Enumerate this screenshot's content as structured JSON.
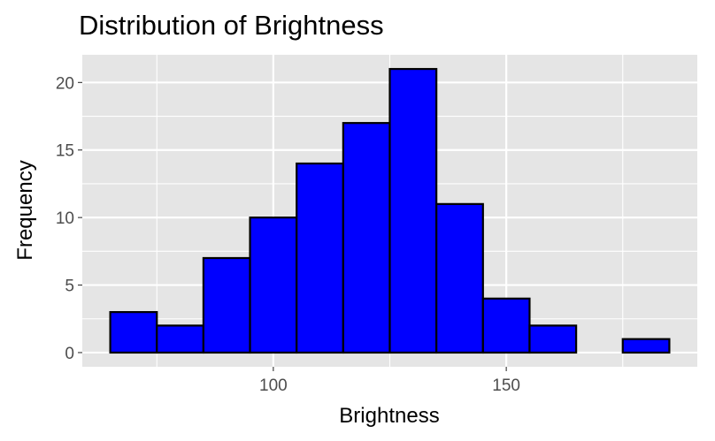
{
  "chart_data": {
    "type": "bar",
    "title": "Distribution of Brightness",
    "xlabel": "Brightness",
    "ylabel": "Frequency",
    "bin_width": 10,
    "bins": [
      {
        "start": 65,
        "end": 75,
        "count": 3
      },
      {
        "start": 75,
        "end": 85,
        "count": 2
      },
      {
        "start": 85,
        "end": 95,
        "count": 7
      },
      {
        "start": 95,
        "end": 105,
        "count": 10
      },
      {
        "start": 105,
        "end": 115,
        "count": 14
      },
      {
        "start": 115,
        "end": 125,
        "count": 17
      },
      {
        "start": 125,
        "end": 135,
        "count": 21
      },
      {
        "start": 135,
        "end": 145,
        "count": 11
      },
      {
        "start": 145,
        "end": 155,
        "count": 4
      },
      {
        "start": 155,
        "end": 165,
        "count": 2
      },
      {
        "start": 165,
        "end": 175,
        "count": 0
      },
      {
        "start": 175,
        "end": 185,
        "count": 1
      }
    ],
    "xlim": [
      59,
      191
    ],
    "ylim": [
      -1.05,
      22.05
    ],
    "x_ticks": [
      100,
      150
    ],
    "x_tick_labels": [
      "100",
      "150"
    ],
    "x_minor_ticks": [
      75,
      125,
      175
    ],
    "y_ticks": [
      0,
      5,
      10,
      15,
      20
    ],
    "y_tick_labels": [
      "0",
      "5",
      "10",
      "15",
      "20"
    ],
    "grid": true,
    "bar_fill": "#0000ff",
    "bar_outline": "#000000",
    "panel_background": "#e5e5e5",
    "grid_color": "#ffffff"
  }
}
